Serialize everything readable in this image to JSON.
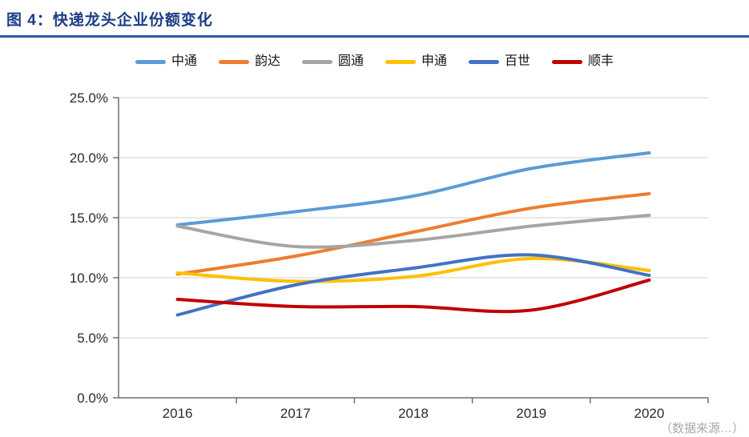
{
  "page": {
    "title": "图 4：快递龙头企业份额变化",
    "title_color": "#1c3c86",
    "rule_color": "#2e5c9e",
    "source_note": "（数据来源…）"
  },
  "chart_data": {
    "type": "line",
    "title": "快递龙头企业份额变化",
    "categories": [
      "2016",
      "2017",
      "2018",
      "2019",
      "2020"
    ],
    "series": [
      {
        "name": "中通",
        "color": "#5B9BD5",
        "values": [
          14.4,
          15.5,
          16.8,
          19.1,
          20.4
        ]
      },
      {
        "name": "韵达",
        "color": "#ED7D31",
        "values": [
          10.3,
          11.8,
          13.8,
          15.8,
          17.0
        ]
      },
      {
        "name": "圆通",
        "color": "#A5A5A5",
        "values": [
          14.3,
          12.6,
          13.1,
          14.3,
          15.2
        ]
      },
      {
        "name": "申通",
        "color": "#FFC000",
        "values": [
          10.4,
          9.7,
          10.1,
          11.6,
          10.6
        ]
      },
      {
        "name": "百世",
        "color": "#4472C4",
        "values": [
          6.9,
          9.4,
          10.8,
          11.9,
          10.2
        ]
      },
      {
        "name": "顺丰",
        "color": "#C00000",
        "values": [
          8.2,
          7.6,
          7.6,
          7.3,
          9.8
        ]
      }
    ],
    "xlabel": "",
    "ylabel": "",
    "unit": "%",
    "ylim": [
      0,
      25
    ],
    "ytick_step": 5,
    "ytick_labels": [
      "0.0%",
      "5.0%",
      "10.0%",
      "15.0%",
      "20.0%",
      "25.0%"
    ],
    "grid": "horizontal",
    "line_smoothing": true,
    "legend_position": "top",
    "style": {
      "axis_color": "#6e6e6e",
      "grid_color": "#d9d9d9",
      "tick_label_color": "#2b2b2b",
      "line_width": 4
    }
  }
}
